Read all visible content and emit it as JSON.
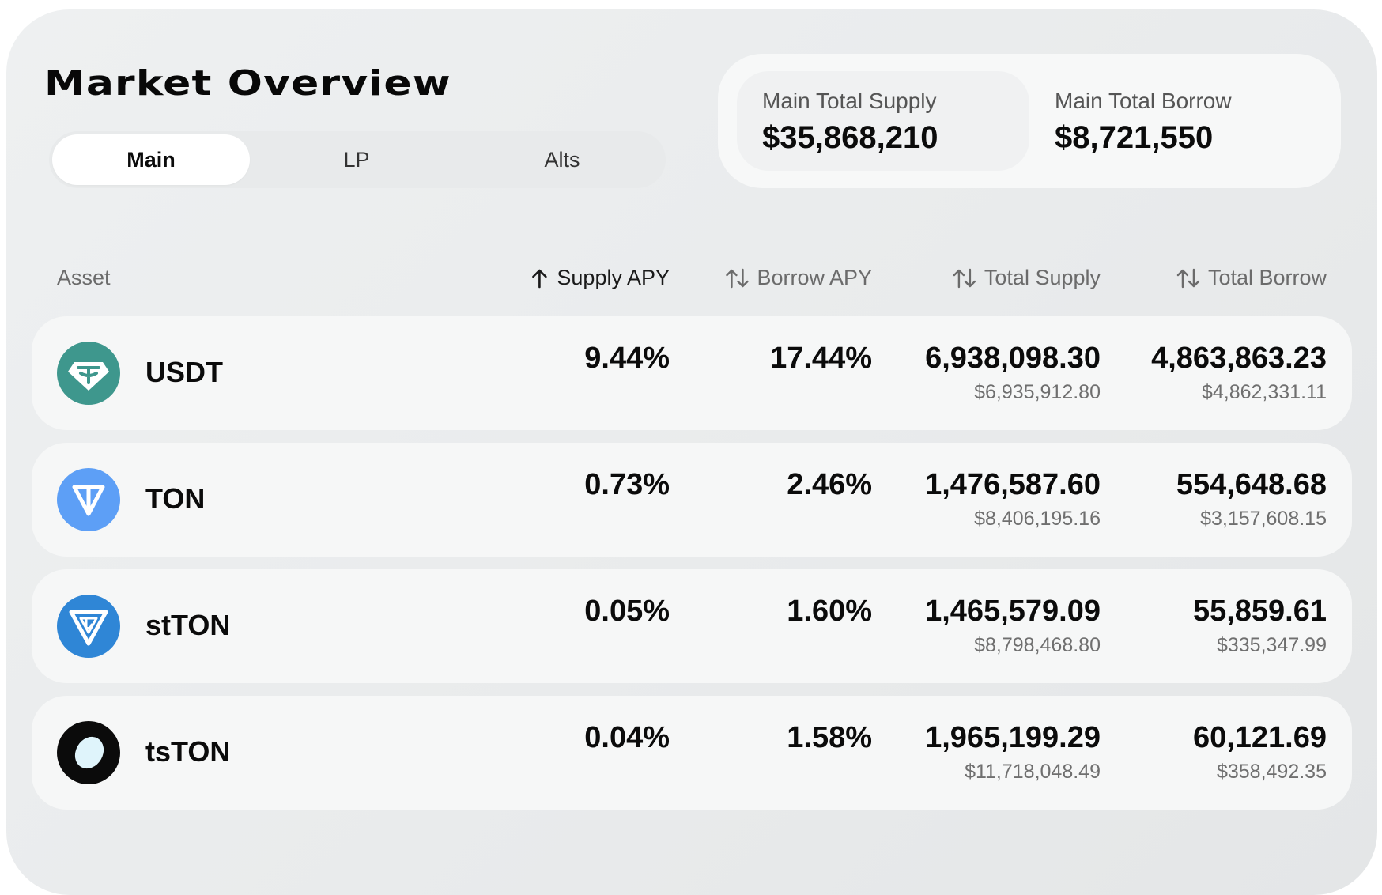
{
  "title": "Market Overview",
  "tabs": [
    {
      "label": "Main",
      "active": true
    },
    {
      "label": "LP",
      "active": false
    },
    {
      "label": "Alts",
      "active": false
    }
  ],
  "summary": {
    "supply_label": "Main Total Supply",
    "supply_value": "$35,868,210",
    "borrow_label": "Main Total Borrow",
    "borrow_value": "$8,721,550"
  },
  "columns": {
    "asset": "Asset",
    "supply_apy": "Supply APY",
    "borrow_apy": "Borrow APY",
    "total_supply": "Total Supply",
    "total_borrow": "Total Borrow"
  },
  "sort": {
    "active_column": "supply_apy",
    "active_icon": "arrow-up-icon",
    "inactive_icon": "sort-updown-icon"
  },
  "colors": {
    "usdt": "#3e978d",
    "ton": "#5d9ff6",
    "stton": "#2f86d6",
    "tston": "#0b0b0b"
  },
  "assets": [
    {
      "name": "USDT",
      "icon": "usdt-icon",
      "supply_apy": "9.44%",
      "borrow_apy": "17.44%",
      "total_supply": "6,938,098.30",
      "total_supply_usd": "$6,935,912.80",
      "total_borrow": "4,863,863.23",
      "total_borrow_usd": "$4,862,331.11"
    },
    {
      "name": "TON",
      "icon": "ton-icon",
      "supply_apy": "0.73%",
      "borrow_apy": "2.46%",
      "total_supply": "1,476,587.60",
      "total_supply_usd": "$8,406,195.16",
      "total_borrow": "554,648.68",
      "total_borrow_usd": "$3,157,608.15"
    },
    {
      "name": "stTON",
      "icon": "stton-icon",
      "supply_apy": "0.05%",
      "borrow_apy": "1.60%",
      "total_supply": "1,465,579.09",
      "total_supply_usd": "$8,798,468.80",
      "total_borrow": "55,859.61",
      "total_borrow_usd": "$335,347.99"
    },
    {
      "name": "tsTON",
      "icon": "tston-icon",
      "supply_apy": "0.04%",
      "borrow_apy": "1.58%",
      "total_supply": "1,965,199.29",
      "total_supply_usd": "$11,718,048.49",
      "total_borrow": "60,121.69",
      "total_borrow_usd": "$358,492.35"
    }
  ]
}
